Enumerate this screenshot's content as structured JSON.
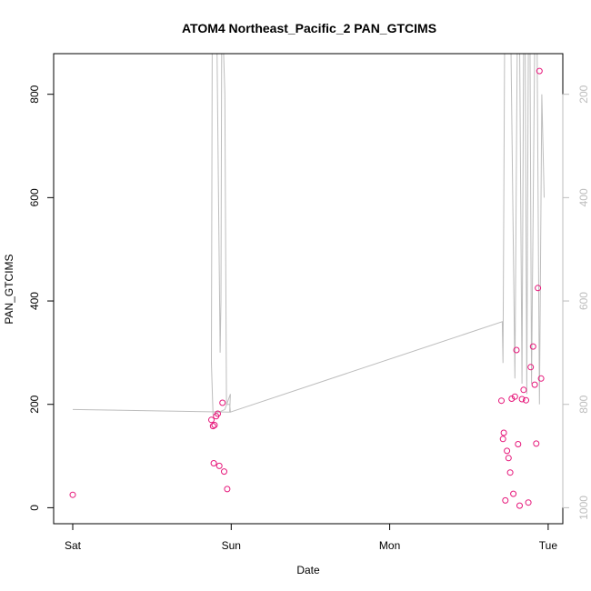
{
  "chart_data": {
    "type": "scatter",
    "title": "ATOM4 Northeast_Pacific_2 PAN_GTCIMS",
    "xlabel": "Date",
    "ylabel": "PAN_GTCIMS",
    "x_unit": "days from Sat 00:00",
    "x_range": [
      0,
      3.05
    ],
    "x_ticks": [
      {
        "value": 0,
        "label": "Sat"
      },
      {
        "value": 1,
        "label": "Sun"
      },
      {
        "value": 2,
        "label": "Mon"
      },
      {
        "value": 3,
        "label": "Tue"
      }
    ],
    "ylim": [
      -30,
      880
    ],
    "y_ticks": [
      0,
      200,
      400,
      600,
      800
    ],
    "y2_label": "",
    "y2_ticks": [
      200,
      400,
      600,
      800,
      1000
    ],
    "y2_range_top_to_bottom": [
      120,
      1030
    ],
    "y2_color": "#bdbdbd",
    "grid": false,
    "series": [
      {
        "kind": "points",
        "color": "#e6177a",
        "x": [
          0.0,
          0.875,
          0.885,
          0.895,
          0.905,
          0.915,
          0.945,
          0.89,
          0.925,
          0.955,
          0.975,
          2.705,
          2.715,
          2.72,
          2.73,
          2.74,
          2.75,
          2.76,
          2.77,
          2.78,
          2.79,
          2.8,
          2.81,
          2.82,
          2.835,
          2.845,
          2.86,
          2.875,
          2.89,
          2.905,
          2.915,
          2.925,
          2.935,
          2.945,
          2.955
        ],
        "y": [
          25,
          170,
          158,
          160,
          177,
          182,
          203,
          86,
          81,
          70,
          36,
          207,
          133,
          145,
          14,
          110,
          96,
          68,
          211,
          27,
          215,
          305,
          123,
          4,
          210,
          228,
          208,
          10,
          272,
          312,
          238,
          124,
          425,
          845,
          250
        ]
      },
      {
        "kind": "line",
        "color": "#bdbdbd",
        "axis": "right",
        "x": [
          0.0,
          0.99,
          0.995,
          0.96,
          0.885,
          0.875,
          0.88,
          0.89,
          0.91,
          0.93,
          0.935,
          0.94,
          0.95,
          0.96,
          0.97,
          0.99,
          0.995,
          2.71,
          2.715,
          2.725,
          2.74,
          2.755,
          2.765,
          2.79,
          2.805,
          2.82,
          2.835,
          2.845,
          2.855,
          2.865,
          2.875,
          2.885,
          2.895,
          2.915,
          2.93,
          2.945,
          2.96,
          2.975
        ],
        "y": [
          810,
          815,
          780,
          810,
          820,
          720,
          100,
          100,
          100,
          700,
          600,
          100,
          100,
          200,
          800,
          800,
          815,
          640,
          720,
          100,
          100,
          100,
          100,
          750,
          100,
          100,
          760,
          100,
          100,
          780,
          100,
          100,
          760,
          100,
          100,
          800,
          200,
          400
        ]
      }
    ]
  }
}
